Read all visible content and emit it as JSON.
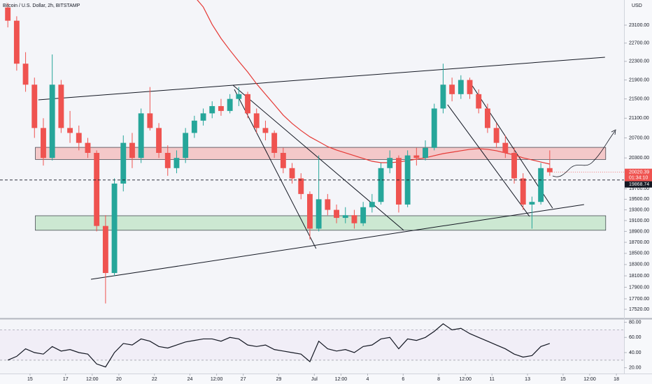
{
  "chart_data": {
    "type": "candlestick",
    "title": "Bitcoin / U.S. Dollar, 2h, BITSTAMP",
    "y_axis_label": "USD",
    "x": [
      13.75,
      14.25,
      14.75,
      15.25,
      15.75,
      16.25,
      16.75,
      17.25,
      17.75,
      18.25,
      18.75,
      19.25,
      19.75,
      20.25,
      20.75,
      21.25,
      21.75,
      22.25,
      22.75,
      23.25,
      23.75,
      24.25,
      24.75,
      25.25,
      25.75,
      26.25,
      26.75,
      27.25,
      27.75,
      28.25,
      28.75,
      29.25,
      29.75,
      30.25,
      30.75,
      31.25,
      31.75,
      32.25,
      32.75,
      33.25,
      33.75,
      34.25,
      34.75,
      35.25,
      35.75,
      36.25,
      36.75,
      37.25,
      37.75,
      38.25,
      38.75,
      39.25,
      39.75,
      40.25,
      40.75,
      41.25,
      41.75,
      42.25,
      42.75,
      43.25,
      43.75,
      44.25
    ],
    "open": [
      23500,
      23200,
      22250,
      21800,
      20900,
      20300,
      21800,
      20900,
      20800,
      20600,
      20400,
      19000,
      18150,
      19800,
      20600,
      20300,
      21200,
      20900,
      20400,
      20100,
      20300,
      20800,
      21050,
      21200,
      21350,
      21250,
      21500,
      21600,
      21200,
      20900,
      20800,
      20400,
      20100,
      19900,
      19600,
      18950,
      19500,
      19300,
      19150,
      19200,
      19050,
      19350,
      19450,
      20100,
      20300,
      19400,
      20350,
      20300,
      20500,
      21300,
      21800,
      21600,
      21900,
      21600,
      21300,
      20900,
      20600,
      20400,
      19900,
      19400,
      19450,
      20100
    ],
    "high": [
      23600,
      23300,
      22500,
      21950,
      21100,
      22450,
      21900,
      21250,
      20950,
      20700,
      20450,
      19200,
      19900,
      20750,
      20800,
      21300,
      21750,
      21000,
      20550,
      20450,
      20900,
      21150,
      21300,
      21450,
      21500,
      21600,
      21750,
      21650,
      21300,
      21050,
      20850,
      20500,
      20200,
      20000,
      19650,
      20350,
      19600,
      19400,
      19350,
      19300,
      19450,
      19600,
      20200,
      20450,
      20350,
      20450,
      20500,
      20650,
      21400,
      22250,
      21950,
      22000,
      21950,
      21700,
      21400,
      21000,
      20750,
      20500,
      20000,
      19550,
      20200,
      20450
    ],
    "low": [
      23050,
      22100,
      21650,
      20700,
      20150,
      20250,
      20800,
      20600,
      20450,
      20300,
      18900,
      17620,
      18100,
      19650,
      20100,
      20200,
      20850,
      20300,
      19950,
      20000,
      20200,
      20700,
      20950,
      21100,
      21150,
      21200,
      21350,
      21100,
      20800,
      20650,
      20300,
      20000,
      19800,
      19500,
      18750,
      18900,
      19200,
      19050,
      19050,
      18950,
      19000,
      19250,
      19400,
      20000,
      19250,
      19350,
      20150,
      20250,
      20450,
      21200,
      21450,
      21500,
      21500,
      21200,
      20800,
      20500,
      20300,
      19800,
      19300,
      18950,
      19400,
      19950
    ],
    "close": [
      23200,
      22250,
      21800,
      20900,
      20300,
      21800,
      20900,
      20800,
      20600,
      20400,
      19000,
      18150,
      19800,
      20600,
      20300,
      21200,
      20900,
      20400,
      20100,
      20300,
      20800,
      21050,
      21200,
      21350,
      21250,
      21500,
      21600,
      21200,
      20900,
      20800,
      20400,
      20100,
      19900,
      19600,
      18950,
      19500,
      19300,
      19150,
      19200,
      19050,
      19350,
      19450,
      20100,
      20300,
      19400,
      20350,
      20300,
      20500,
      21300,
      21800,
      21600,
      21900,
      21600,
      21300,
      20900,
      20600,
      20400,
      19900,
      19400,
      19450,
      20100,
      20020.39
    ],
    "up_color": "#26a69a",
    "down_color": "#ef5350",
    "overlay": {
      "color": "#e53935",
      "values": [
        null,
        null,
        null,
        null,
        null,
        null,
        null,
        null,
        null,
        null,
        null,
        null,
        null,
        null,
        null,
        null,
        null,
        null,
        null,
        null,
        null,
        23752,
        23511,
        23115,
        22804,
        22543,
        22300,
        22070,
        21818,
        21597,
        21380,
        21163,
        20993,
        20849,
        20722,
        20624,
        20525,
        20456,
        20400,
        20345,
        20290,
        20234,
        20207,
        20207,
        20220,
        20247,
        20275,
        20302,
        20345,
        20386,
        20414,
        20442,
        20470,
        20484,
        20470,
        20442,
        20400,
        20359,
        20302,
        20261,
        20220,
        20179
      ]
    },
    "ylog": true,
    "ylim": [
      17378,
      23672
    ],
    "yticks": [
      {
        "value": 17520,
        "label": "17520.00"
      },
      {
        "value": 17700,
        "label": "17700.00"
      },
      {
        "value": 17900,
        "label": "17900.00"
      },
      {
        "value": 18100,
        "label": "18100.00"
      },
      {
        "value": 18300,
        "label": "18300.00"
      },
      {
        "value": 18500,
        "label": "18500.00"
      },
      {
        "value": 18700,
        "label": "18700.00"
      },
      {
        "value": 18900,
        "label": "18900.00"
      },
      {
        "value": 19100,
        "label": "19100.00"
      },
      {
        "value": 19300,
        "label": "19300.00"
      },
      {
        "value": 19500,
        "label": "19500.00"
      },
      {
        "value": 19700,
        "label": "19700.00"
      },
      {
        "value": 20300,
        "label": "20300.00"
      },
      {
        "value": 20700,
        "label": "20700.00"
      },
      {
        "value": 21100,
        "label": "21100.00"
      },
      {
        "value": 21500,
        "label": "21500.00"
      },
      {
        "value": 21900,
        "label": "21900.00"
      },
      {
        "value": 22300,
        "label": "22300.00"
      },
      {
        "value": 22700,
        "label": "22700.00"
      },
      {
        "value": 23100,
        "label": "23100.00"
      }
    ],
    "xlim": [
      13.31,
      48.43
    ],
    "xticks": [
      15,
      17,
      {
        "value": 18.5,
        "label": "12:00"
      },
      20,
      22,
      24,
      {
        "value": 25.5,
        "label": "12:00"
      },
      27,
      29,
      {
        "value": 31,
        "label": "Jul"
      },
      {
        "value": 32.5,
        "label": "12:00"
      },
      {
        "value": 34,
        "label": "4"
      },
      {
        "value": 36,
        "label": "6"
      },
      {
        "value": 38,
        "label": "8"
      },
      {
        "value": 39.5,
        "label": "12:00"
      },
      {
        "value": 41,
        "label": "11"
      },
      {
        "value": 43,
        "label": "13"
      },
      {
        "value": 45,
        "label": "15"
      },
      {
        "value": 46.5,
        "label": "12:00"
      },
      {
        "value": 48,
        "label": "18"
      }
    ],
    "zones": [
      {
        "xrange": [
          15.3,
          47.4
        ],
        "range": [
          20270,
          20510
        ],
        "color": "#f4b8b8"
      },
      {
        "xrange": [
          15.3,
          47.4
        ],
        "range": [
          18920,
          19190
        ],
        "color": "#bfe3c4"
      }
    ],
    "trendlines": [
      {
        "x": [
          15.47,
          47.36
        ],
        "y": [
          21481,
          22389
        ]
      },
      {
        "x": [
          18.43,
          46.18
        ],
        "y": [
          18039,
          19400
        ]
      },
      {
        "x": [
          26.42,
          36.03
        ],
        "y": [
          21790,
          18919
        ]
      },
      {
        "x": [
          26.5,
          31.1
        ],
        "y": [
          21700,
          18586
        ]
      },
      {
        "x": [
          39.69,
          44.41
        ],
        "y": [
          21892,
          19332
        ]
      },
      {
        "x": [
          38.5,
          43.11
        ],
        "y": [
          21380,
          19178
        ]
      }
    ],
    "countdown": "01:34:10",
    "marker_price": 19868.74,
    "indicator": {
      "color": "#131722",
      "values": [
        30,
        35,
        45,
        40,
        38,
        48,
        42,
        44,
        40,
        38,
        25,
        21,
        40,
        52,
        50,
        58,
        55,
        48,
        46,
        50,
        54,
        56,
        58,
        58,
        55,
        60,
        58,
        50,
        48,
        50,
        44,
        42,
        40,
        38,
        28,
        55,
        45,
        42,
        44,
        40,
        48,
        50,
        58,
        60,
        45,
        58,
        56,
        60,
        68,
        78,
        70,
        72,
        65,
        60,
        55,
        50,
        45,
        38,
        34,
        36,
        48,
        52
      ],
      "ylim": [
        12.35,
        83.3
      ],
      "yticks": [
        {
          "value": 20,
          "label": "20.00"
        },
        {
          "value": 40,
          "label": "40.00"
        },
        {
          "value": 60,
          "label": "60.00"
        },
        {
          "value": 80,
          "label": "80.00"
        }
      ],
      "bands": [
        30,
        70
      ]
    }
  }
}
